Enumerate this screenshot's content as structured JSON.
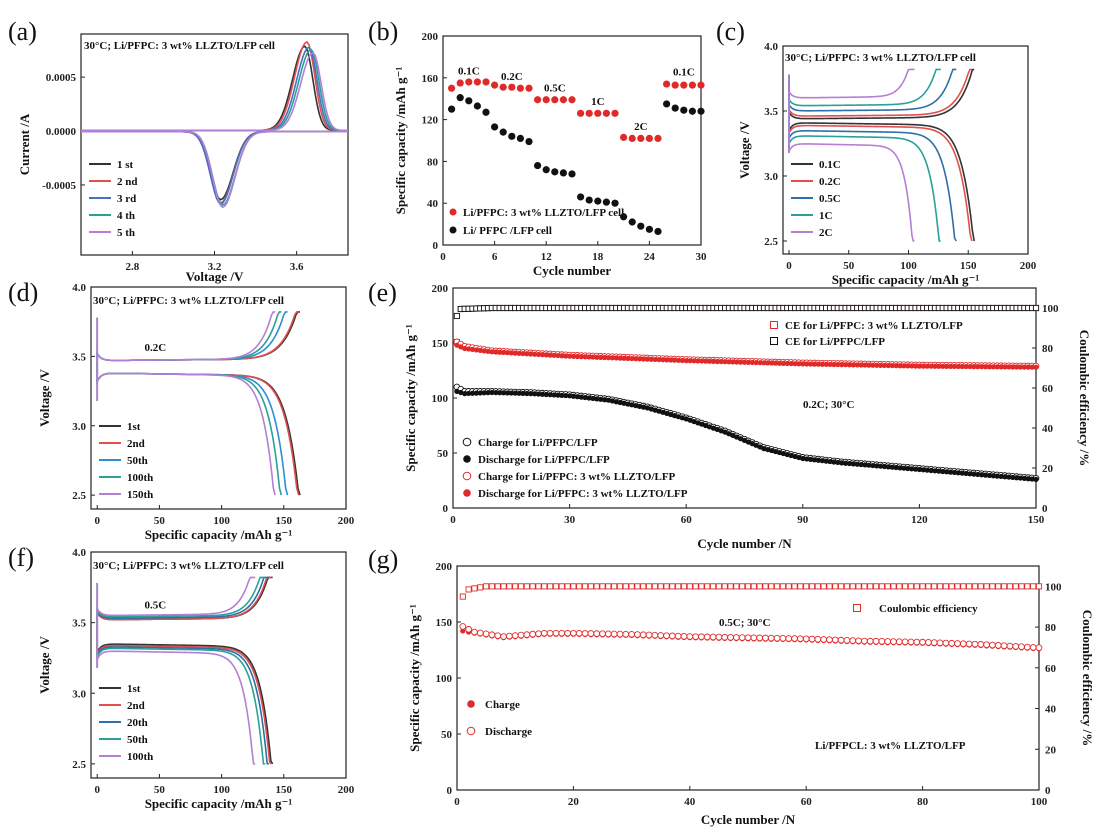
{
  "panel_labels": [
    "(a)",
    "(b)",
    "(c)",
    "(d)",
    "(e)",
    "(f)",
    "(g)"
  ],
  "chart_data": [
    {
      "id": "a",
      "type": "line",
      "title": "30°C; Li/PFPC: 3 wt% LLZTO/LFP cell",
      "xlabel": "Voltage /V",
      "ylabel": "Current /A",
      "xlim": [
        2.55,
        3.85
      ],
      "ylim": [
        -0.00115,
        0.0009
      ],
      "xticks": [
        2.8,
        3.2,
        3.6
      ],
      "xtick_labels": [
        "2.8",
        "3.2",
        "3.6"
      ],
      "yticks": [
        -0.0005,
        0.0,
        0.0005
      ],
      "ytick_labels": [
        "-0.0005",
        "0.0000",
        "0.0005"
      ],
      "series": [
        {
          "name": "1 st",
          "color": "#333333",
          "anodic_peak": [
            3.64,
            0.00078
          ],
          "cathodic_peak": [
            3.23,
            -0.00063
          ]
        },
        {
          "name": "2 nd",
          "color": "#e0504e",
          "anodic_peak": [
            3.65,
            0.00082
          ],
          "cathodic_peak": [
            3.23,
            -0.00066
          ]
        },
        {
          "name": "3 rd",
          "color": "#4a6fc4",
          "anodic_peak": [
            3.66,
            0.00077
          ],
          "cathodic_peak": [
            3.23,
            -0.00067
          ]
        },
        {
          "name": "4 th",
          "color": "#2aa198",
          "anodic_peak": [
            3.67,
            0.00075
          ],
          "cathodic_peak": [
            3.24,
            -0.00068
          ]
        },
        {
          "name": "5 th",
          "color": "#b57fd6",
          "anodic_peak": [
            3.68,
            0.00072
          ],
          "cathodic_peak": [
            3.24,
            -0.0007
          ]
        }
      ]
    },
    {
      "id": "b",
      "type": "scatter",
      "xlabel": "Cycle number",
      "ylabel": "Specific capacity /mAh g⁻¹",
      "xlim": [
        0,
        30
      ],
      "ylim": [
        0,
        200
      ],
      "xticks": [
        0,
        6,
        12,
        18,
        24,
        30
      ],
      "yticks": [
        0,
        40,
        80,
        120,
        160,
        200
      ],
      "rate_labels": [
        {
          "text": "0.1C",
          "x": 3,
          "y": 163
        },
        {
          "text": "0.2C",
          "x": 8,
          "y": 158
        },
        {
          "text": "0.5C",
          "x": 13,
          "y": 147
        },
        {
          "text": "1C",
          "x": 18,
          "y": 134
        },
        {
          "text": "2C",
          "x": 23,
          "y": 110
        },
        {
          "text": "0.1C",
          "x": 28,
          "y": 162
        }
      ],
      "series": [
        {
          "name": "Li/PFPC: 3 wt% LLZTO/LFP cell",
          "color": "#e02a2a",
          "x": [
            1,
            2,
            3,
            4,
            5,
            6,
            7,
            8,
            9,
            10,
            11,
            12,
            13,
            14,
            15,
            16,
            17,
            18,
            19,
            20,
            21,
            22,
            23,
            24,
            25,
            26,
            27,
            28,
            29,
            30
          ],
          "values": [
            150,
            155,
            156,
            156,
            156,
            153,
            151,
            151,
            150,
            150,
            139,
            139,
            139,
            139,
            139,
            126,
            126,
            126,
            126,
            126,
            103,
            102,
            102,
            102,
            102,
            154,
            153,
            153,
            153,
            153
          ]
        },
        {
          "name": "Li/ PFPC /LFP cell",
          "color": "#111111",
          "x": [
            1,
            2,
            3,
            4,
            5,
            6,
            7,
            8,
            9,
            10,
            11,
            12,
            13,
            14,
            15,
            16,
            17,
            18,
            19,
            20,
            21,
            22,
            23,
            24,
            25,
            26,
            27,
            28,
            29,
            30
          ],
          "values": [
            130,
            141,
            138,
            133,
            127,
            113,
            108,
            104,
            102,
            99,
            76,
            72,
            70,
            69,
            68,
            46,
            43,
            42,
            41,
            40,
            27,
            22,
            18,
            15,
            13,
            135,
            131,
            129,
            128,
            128
          ]
        }
      ]
    },
    {
      "id": "c",
      "type": "line",
      "title": "30°C; Li/PFPC: 3 wt% LLZTO/LFP cell",
      "xlabel": "Specific capacity /mAh g⁻¹",
      "ylabel": "Voltage /V",
      "xlim": [
        -5,
        200
      ],
      "ylim": [
        2.4,
        4.0
      ],
      "xticks": [
        0,
        50,
        100,
        150,
        200
      ],
      "yticks": [
        2.5,
        3.0,
        3.5,
        4.0
      ],
      "ytick_labels": [
        "2.5",
        "3.0",
        "3.5",
        "4.0"
      ],
      "series": [
        {
          "name": "0.1C",
          "color": "#333333",
          "capacity": 155,
          "charge_plateau": 3.44,
          "discharge_plateau": 3.41
        },
        {
          "name": "0.2C",
          "color": "#e0504e",
          "capacity": 153,
          "charge_plateau": 3.46,
          "discharge_plateau": 3.39
        },
        {
          "name": "0.5C",
          "color": "#2d6fa8",
          "capacity": 140,
          "charge_plateau": 3.5,
          "discharge_plateau": 3.35
        },
        {
          "name": "1C",
          "color": "#2aa198",
          "capacity": 127,
          "charge_plateau": 3.54,
          "discharge_plateau": 3.31
        },
        {
          "name": "2C",
          "color": "#b57fd6",
          "capacity": 105,
          "charge_plateau": 3.6,
          "discharge_plateau": 3.25
        }
      ]
    },
    {
      "id": "d",
      "type": "line",
      "title": "30°C; Li/PFPC: 3 wt% LLZTO/LFP cell",
      "annotation": "0.2C",
      "xlabel": "Specific capacity /mAh g⁻¹",
      "ylabel": "Voltage /V",
      "xlim": [
        -5,
        200
      ],
      "ylim": [
        2.4,
        4.0
      ],
      "xticks": [
        0,
        50,
        100,
        150,
        200
      ],
      "yticks": [
        2.5,
        3.0,
        3.5,
        4.0
      ],
      "ytick_labels": [
        "2.5",
        "3.0",
        "3.5",
        "4.0"
      ],
      "series": [
        {
          "name": "1st",
          "color": "#333333",
          "capacity": 163,
          "charge_plateau": 3.47,
          "discharge_plateau": 3.38
        },
        {
          "name": "2nd",
          "color": "#e0504e",
          "capacity": 162,
          "charge_plateau": 3.47,
          "discharge_plateau": 3.38
        },
        {
          "name": "50th",
          "color": "#2d8fd1",
          "capacity": 153,
          "charge_plateau": 3.47,
          "discharge_plateau": 3.38
        },
        {
          "name": "100th",
          "color": "#2aa198",
          "capacity": 148,
          "charge_plateau": 3.47,
          "discharge_plateau": 3.38
        },
        {
          "name": "150th",
          "color": "#b57fd6",
          "capacity": 143,
          "charge_plateau": 3.47,
          "discharge_plateau": 3.38
        }
      ]
    },
    {
      "id": "e",
      "type": "scatter",
      "annotation": "0.2C; 30°C",
      "xlabel": "Cycle number /N",
      "ylabel": "Specific capacity /mAh g⁻¹",
      "y2label": "Coulombic efficiency /%",
      "xlim": [
        0,
        150
      ],
      "ylim": [
        0,
        200
      ],
      "y2lim": [
        0,
        110
      ],
      "xticks": [
        0,
        30,
        60,
        90,
        120,
        150
      ],
      "yticks": [
        0,
        50,
        100,
        150,
        200
      ],
      "y2ticks": [
        0,
        20,
        40,
        60,
        80,
        100
      ],
      "series": [
        {
          "name": "CE for Li/PFPC: 3 wt% LLZTO/LFP",
          "axis": "right",
          "color": "#e02a2a",
          "marker": "open-square",
          "x": [
            1,
            2,
            10,
            50,
            100,
            150
          ],
          "values": [
            83,
            99.5,
            100,
            100,
            100,
            100
          ]
        },
        {
          "name": "CE for Li/PFPC/LFP",
          "axis": "right",
          "color": "#111111",
          "marker": "open-square",
          "x": [
            1,
            2,
            10,
            50,
            100,
            150
          ],
          "values": [
            96,
            99.5,
            100,
            100,
            100,
            100
          ]
        },
        {
          "name": "Charge for Li/PFPC/LFP",
          "axis": "left",
          "color": "#111111",
          "marker": "open-circle",
          "x": [
            1,
            3,
            10,
            20,
            30,
            40,
            50,
            60,
            70,
            80,
            90,
            100,
            110,
            120,
            130,
            140,
            150
          ],
          "values": [
            110,
            106,
            106,
            105,
            103,
            99,
            92,
            82,
            70,
            55,
            46,
            42,
            39,
            36,
            33,
            30,
            27
          ]
        },
        {
          "name": "Discharge for Li/PFPC/LFP",
          "axis": "left",
          "color": "#111111",
          "marker": "filled-circle",
          "x": [
            1,
            3,
            10,
            20,
            30,
            40,
            50,
            60,
            70,
            80,
            90,
            100,
            110,
            120,
            130,
            140,
            150
          ],
          "values": [
            106,
            104,
            105,
            104,
            102,
            98,
            91,
            81,
            69,
            54,
            45,
            41,
            38,
            35,
            32,
            29,
            26
          ]
        },
        {
          "name": "Charge for Li/PFPC: 3 wt% LLZTO/LFP",
          "axis": "left",
          "color": "#e02a2a",
          "marker": "open-circle",
          "x": [
            1,
            3,
            10,
            30,
            60,
            90,
            120,
            150
          ],
          "values": [
            151,
            147,
            143,
            139,
            135,
            132,
            130,
            129
          ]
        },
        {
          "name": "Discharge for Li/PFPC: 3 wt% LLZTO/LFP",
          "axis": "left",
          "color": "#e02a2a",
          "marker": "filled-circle",
          "x": [
            1,
            3,
            10,
            30,
            60,
            90,
            120,
            150
          ],
          "values": [
            148,
            145,
            142,
            138,
            134,
            131,
            129,
            128
          ]
        }
      ]
    },
    {
      "id": "f",
      "type": "line",
      "title": "30°C; Li/PFPC: 3 wt% LLZTO/LFP cell",
      "annotation": "0.5C",
      "xlabel": "Specific capacity /mAh g⁻¹",
      "ylabel": "Voltage /V",
      "xlim": [
        -5,
        200
      ],
      "ylim": [
        2.4,
        4.0
      ],
      "xticks": [
        0,
        50,
        100,
        150,
        200
      ],
      "yticks": [
        2.5,
        3.0,
        3.5,
        4.0
      ],
      "ytick_labels": [
        "2.5",
        "3.0",
        "3.5",
        "4.0"
      ],
      "series": [
        {
          "name": "1st",
          "color": "#333333",
          "capacity": 141,
          "charge_plateau": 3.52,
          "discharge_plateau": 3.35
        },
        {
          "name": "2nd",
          "color": "#e0504e",
          "capacity": 140,
          "charge_plateau": 3.52,
          "discharge_plateau": 3.34
        },
        {
          "name": "20th",
          "color": "#2d6fa8",
          "capacity": 138,
          "charge_plateau": 3.53,
          "discharge_plateau": 3.33
        },
        {
          "name": "50th",
          "color": "#2aa198",
          "capacity": 135,
          "charge_plateau": 3.54,
          "discharge_plateau": 3.32
        },
        {
          "name": "100th",
          "color": "#b57fd6",
          "capacity": 127,
          "charge_plateau": 3.55,
          "discharge_plateau": 3.3
        }
      ]
    },
    {
      "id": "g",
      "type": "scatter",
      "annotation": "0.5C; 30°C",
      "annotation2": "Li/PFPCL: 3 wt% LLZTO/LFP",
      "xlabel": "Cycle number /N",
      "ylabel": "Specific capacity /mAh g⁻¹",
      "y2label": "Coulombic efficiency /%",
      "xlim": [
        0,
        100
      ],
      "ylim": [
        0,
        200
      ],
      "y2lim": [
        0,
        110
      ],
      "xticks": [
        0,
        20,
        40,
        60,
        80,
        100
      ],
      "yticks": [
        0,
        50,
        100,
        150,
        200
      ],
      "y2ticks": [
        0,
        20,
        40,
        60,
        80,
        100
      ],
      "series": [
        {
          "name": "Coulombic efficiency",
          "axis": "right",
          "color": "#e02a2a",
          "marker": "open-square",
          "x": [
            1,
            2,
            5,
            20,
            50,
            80,
            100
          ],
          "values": [
            95,
            98.5,
            100,
            100,
            100,
            100,
            100
          ]
        },
        {
          "name": "Charge",
          "axis": "left",
          "color": "#e02a2a",
          "marker": "filled-circle",
          "x": [
            1,
            3,
            8,
            15,
            20,
            30,
            40,
            50,
            60,
            70,
            80,
            90,
            100
          ],
          "values": [
            142,
            140,
            136,
            139,
            139,
            138,
            136,
            135,
            134,
            132,
            131,
            129,
            126
          ]
        },
        {
          "name": "Discharge",
          "axis": "left",
          "color": "#e02a2a",
          "marker": "open-circle",
          "x": [
            1,
            3,
            8,
            15,
            20,
            30,
            40,
            50,
            60,
            70,
            80,
            90,
            100
          ],
          "values": [
            146,
            141,
            137,
            140,
            140,
            139,
            137,
            136,
            135,
            133,
            132,
            130,
            127
          ]
        }
      ]
    }
  ]
}
